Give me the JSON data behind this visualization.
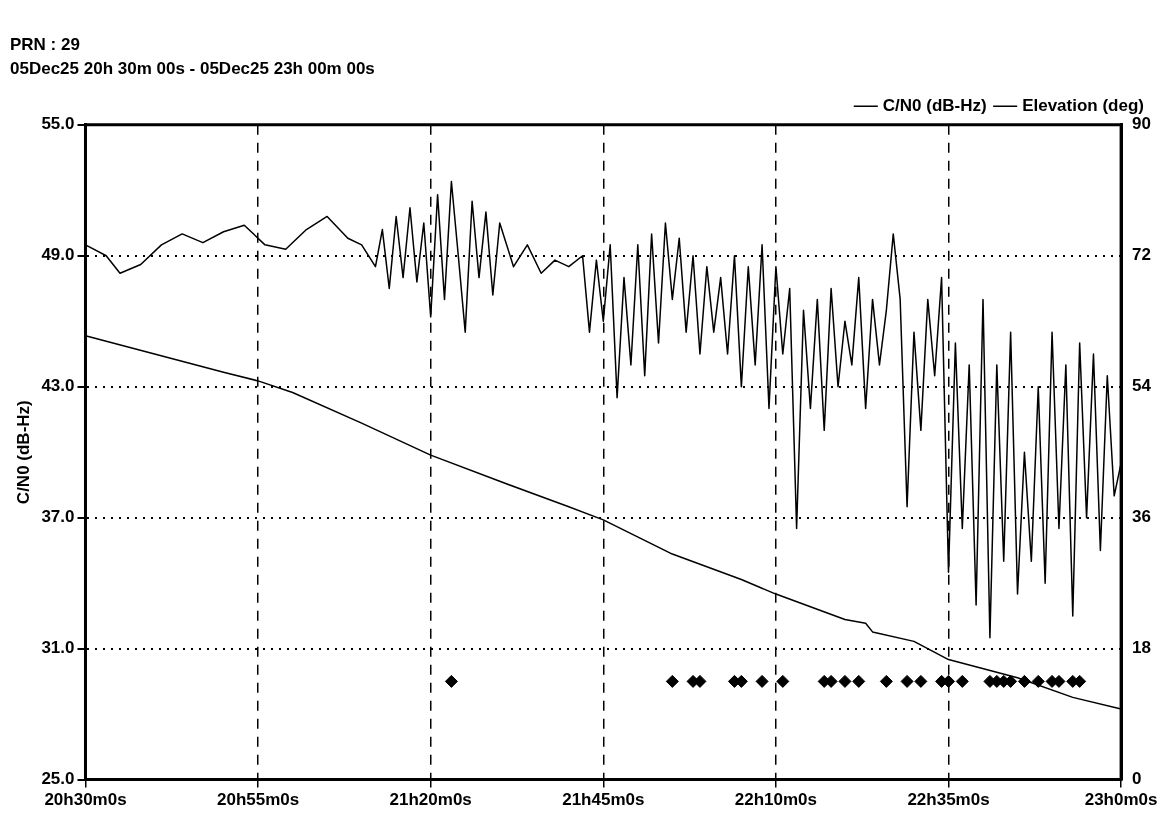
{
  "chart_data": {
    "type": "line",
    "title": "PRN : 29",
    "subtitle": "05Dec25 20h 30m 00s - 05Dec25 23h 00m 00s",
    "ylabel": "C/N0 (dB-Hz)",
    "xlim": [
      "--12-05T20:30",
      "--12-05T23:00"
    ],
    "xticks": [
      {
        "value": "--12-05T20:30",
        "label": "20h30m0s"
      },
      {
        "value": "--12-05T20:55",
        "label": "20h55m0s"
      },
      {
        "value": "--12-05T21:20",
        "label": "21h20m0s"
      },
      {
        "value": "--12-05T21:45",
        "label": "21h45m0s"
      },
      {
        "value": "--12-05T22:10",
        "label": "22h10m0s"
      },
      {
        "value": "--12-05T22:35",
        "label": "22h35m0s"
      },
      {
        "value": "--12-05T23:00",
        "label": "23h0m0s"
      }
    ],
    "ylim": [
      25,
      55
    ],
    "yticks": [
      {
        "value": 25,
        "label": "25.0"
      },
      {
        "value": 31,
        "label": "31.0"
      },
      {
        "value": 37,
        "label": "37.0"
      },
      {
        "value": 43,
        "label": "43.0"
      },
      {
        "value": 49,
        "label": "49.0"
      },
      {
        "value": 55,
        "label": "55.0"
      }
    ],
    "y2lim": [
      0,
      90
    ],
    "y2ticks": [
      0,
      18,
      36,
      54,
      72,
      90
    ],
    "grid": true,
    "legend": "top right",
    "marker": "none",
    "line_style": "solid",
    "series": [
      {
        "name": "C/N0 (dB-Hz)",
        "color": "#000000",
        "x": [
          "--12-05T20:30",
          "--12-05T20:33",
          "--12-05T20:35",
          "--12-05T20:38",
          "--12-05T20:41",
          "--12-05T20:44",
          "--12-05T20:47",
          "--12-05T20:50",
          "--12-05T20:53",
          "--12-05T20:56",
          "--12-05T20:59",
          "--12-05T21:02",
          "--12-05T21:05",
          "--12-05T21:08",
          "--12-05T21:10",
          "--12-05T21:12",
          "--12-05T21:13",
          "--12-05T21:14",
          "--12-05T21:15",
          "--12-05T21:16",
          "--12-05T21:17",
          "--12-05T21:18",
          "--12-05T21:19",
          "--12-05T21:20",
          "--12-05T21:21",
          "--12-05T21:22",
          "--12-05T21:23",
          "--12-05T21:24",
          "--12-05T21:25",
          "--12-05T21:26",
          "--12-05T21:27",
          "--12-05T21:28",
          "--12-05T21:29",
          "--12-05T21:30",
          "--12-05T21:32",
          "--12-05T21:34",
          "--12-05T21:36",
          "--12-05T21:38",
          "--12-05T21:40",
          "--12-05T21:42",
          "--12-05T21:43",
          "--12-05T21:44",
          "--12-05T21:45",
          "--12-05T21:46",
          "--12-05T21:47",
          "--12-05T21:48",
          "--12-05T21:49",
          "--12-05T21:50",
          "--12-05T21:51",
          "--12-05T21:52",
          "--12-05T21:53",
          "--12-05T21:54",
          "--12-05T21:55",
          "--12-05T21:56",
          "--12-05T21:57",
          "--12-05T21:58",
          "--12-05T21:59",
          "--12-05T22:00",
          "--12-05T22:01",
          "--12-05T22:02",
          "--12-05T22:03",
          "--12-05T22:04",
          "--12-05T22:05",
          "--12-05T22:06",
          "--12-05T22:07",
          "--12-05T22:08",
          "--12-05T22:09",
          "--12-05T22:10",
          "--12-05T22:11",
          "--12-05T22:12",
          "--12-05T22:13",
          "--12-05T22:14",
          "--12-05T22:15",
          "--12-05T22:16",
          "--12-05T22:17",
          "--12-05T22:18",
          "--12-05T22:19",
          "--12-05T22:20",
          "--12-05T22:21",
          "--12-05T22:22",
          "--12-05T22:23",
          "--12-05T22:24",
          "--12-05T22:25",
          "--12-05T22:26",
          "--12-05T22:27",
          "--12-05T22:28",
          "--12-05T22:29",
          "--12-05T22:30",
          "--12-05T22:31",
          "--12-05T22:32",
          "--12-05T22:33",
          "--12-05T22:34",
          "--12-05T22:35",
          "--12-05T22:36",
          "--12-05T22:37",
          "--12-05T22:38",
          "--12-05T22:39",
          "--12-05T22:40",
          "--12-05T22:41",
          "--12-05T22:42",
          "--12-05T22:43",
          "--12-05T22:44",
          "--12-05T22:45",
          "--12-05T22:46",
          "--12-05T22:47",
          "--12-05T22:48",
          "--12-05T22:49",
          "--12-05T22:50",
          "--12-05T22:51",
          "--12-05T22:52",
          "--12-05T22:53",
          "--12-05T22:54",
          "--12-05T22:55",
          "--12-05T22:56",
          "--12-05T22:57",
          "--12-05T22:58",
          "--12-05T22:59",
          "--12-05T23:00"
        ],
        "values": [
          49.5,
          49.0,
          48.2,
          48.6,
          49.5,
          50.0,
          49.6,
          50.1,
          50.4,
          49.5,
          49.3,
          50.2,
          50.8,
          49.8,
          49.5,
          48.5,
          50.2,
          47.5,
          50.8,
          48.0,
          51.2,
          47.8,
          50.5,
          46.2,
          51.8,
          47.0,
          52.4,
          49.0,
          45.5,
          51.5,
          48.0,
          51.0,
          47.2,
          50.5,
          48.5,
          49.5,
          48.2,
          48.8,
          48.5,
          49.0,
          45.5,
          48.8,
          46.0,
          49.5,
          42.5,
          48.0,
          44.0,
          49.5,
          43.5,
          50.0,
          45.0,
          50.5,
          47.0,
          49.8,
          45.5,
          49.0,
          44.5,
          48.5,
          45.5,
          48.0,
          44.5,
          49.0,
          43.0,
          48.5,
          44.0,
          49.5,
          42.0,
          48.5,
          44.5,
          47.5,
          36.5,
          46.5,
          42.0,
          47.0,
          41.0,
          47.5,
          43.0,
          46.0,
          44.0,
          48.0,
          42.0,
          47.0,
          44.0,
          46.5,
          50.0,
          47.0,
          37.5,
          45.5,
          41.0,
          47.0,
          43.5,
          48.0,
          34.5,
          45.0,
          36.5,
          44.0,
          33.0,
          47.0,
          31.5,
          44.0,
          35.0,
          45.5,
          33.5,
          40.0,
          35.0,
          43.0,
          34.0,
          45.5,
          36.5,
          44.0,
          32.5,
          45.0,
          37.0,
          44.5,
          35.5,
          43.5,
          38.0,
          39.5
        ]
      },
      {
        "name": "Elevation (deg)",
        "color": "#000000",
        "axis": "y2",
        "x": [
          "--12-05T20:30",
          "--12-05T20:40",
          "--12-05T20:50",
          "--12-05T20:55",
          "--12-05T21:00",
          "--12-05T21:10",
          "--12-05T21:20",
          "--12-05T21:30",
          "--12-05T21:40",
          "--12-05T21:45",
          "--12-05T21:55",
          "--12-05T22:05",
          "--12-05T22:10",
          "--12-05T22:20",
          "--12-05T22:23",
          "--12-05T22:24",
          "--12-05T22:30",
          "--12-05T22:35",
          "--12-05T22:45",
          "--12-05T22:53",
          "--12-05T23:00"
        ],
        "values": [
          61.0,
          58.5,
          56.0,
          54.8,
          53.2,
          49.0,
          44.6,
          41.0,
          37.5,
          35.7,
          31.0,
          27.5,
          25.5,
          22.0,
          21.5,
          20.3,
          19.0,
          16.5,
          14.0,
          11.3,
          9.7
        ]
      },
      {
        "color": "#000000",
        "type": "scatter",
        "marker": "diamond",
        "x": [
          "--12-05T21:23",
          "--12-05T21:55",
          "--12-05T21:58",
          "--12-05T21:59",
          "--12-05T22:04",
          "--12-05T22:05",
          "--12-05T22:08",
          "--12-05T22:11",
          "--12-05T22:17",
          "--12-05T22:18",
          "--12-05T22:20",
          "--12-05T22:22",
          "--12-05T22:26",
          "--12-05T22:29",
          "--12-05T22:31",
          "--12-05T22:34",
          "--12-05T22:35",
          "--12-05T22:37",
          "--12-05T22:41",
          "--12-05T22:42",
          "--12-05T22:43",
          "--12-05T22:44",
          "--12-05T22:46",
          "--12-05T22:48",
          "--12-05T22:50",
          "--12-05T22:51",
          "--12-05T22:53",
          "--12-05T22:54"
        ],
        "values": [
          29.5,
          29.5,
          29.5,
          29.5,
          29.5,
          29.5,
          29.5,
          29.5,
          29.5,
          29.5,
          29.5,
          29.5,
          29.5,
          29.5,
          29.5,
          29.5,
          29.5,
          29.5,
          29.5,
          29.5,
          29.5,
          29.5,
          29.5,
          29.5,
          29.5,
          29.5,
          29.5,
          29.5
        ]
      }
    ]
  }
}
